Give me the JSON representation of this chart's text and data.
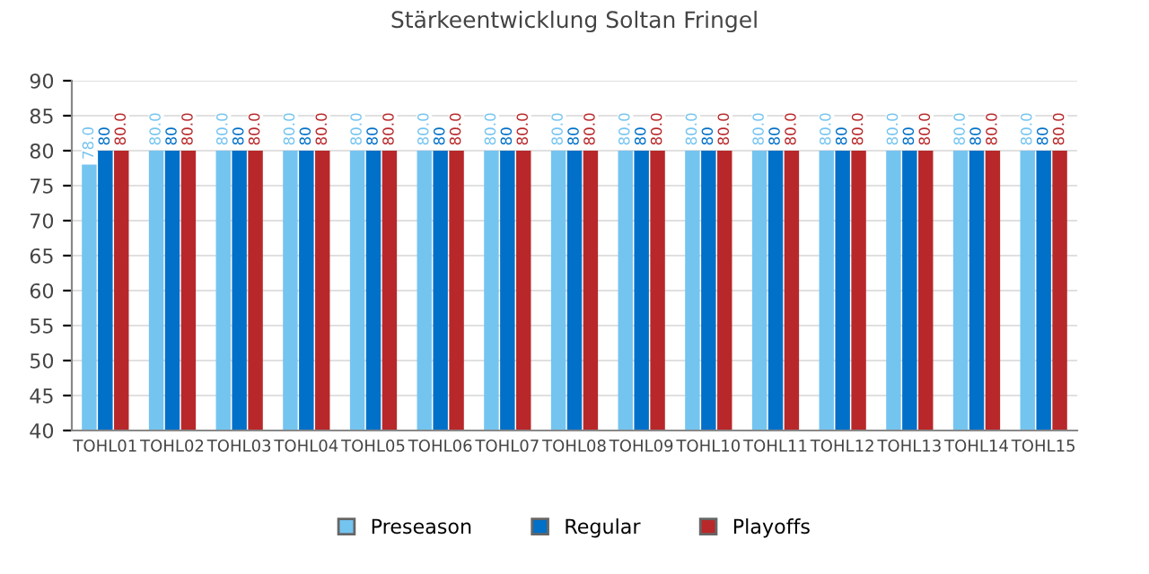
{
  "chart_data": {
    "type": "bar",
    "title": "Stärkeentwicklung Soltan Fringel",
    "categories": [
      "TOHL01",
      "TOHL02",
      "TOHL03",
      "TOHL04",
      "TOHL05",
      "TOHL06",
      "TOHL07",
      "TOHL08",
      "TOHL09",
      "TOHL10",
      "TOHL11",
      "TOHL12",
      "TOHL13",
      "TOHL14",
      "TOHL15"
    ],
    "series": [
      {
        "name": "Preseason",
        "color": "#74c4f0",
        "values": [
          78,
          80,
          80,
          80,
          80,
          80,
          80,
          80,
          80,
          80,
          80,
          80,
          80,
          80,
          80
        ],
        "value_labels": [
          "78.0",
          "80.0",
          "80.0",
          "80.0",
          "80.0",
          "80.0",
          "80.0",
          "80.0",
          "80.0",
          "80.0",
          "80.0",
          "80.0",
          "80.0",
          "80.0",
          "80.0"
        ]
      },
      {
        "name": "Regular",
        "color": "#0070c8",
        "values": [
          80,
          80,
          80,
          80,
          80,
          80,
          80,
          80,
          80,
          80,
          80,
          80,
          80,
          80,
          80
        ],
        "value_labels": [
          "80",
          "80",
          "80",
          "80",
          "80",
          "80",
          "80",
          "80",
          "80",
          "80",
          "80",
          "80",
          "80",
          "80",
          "80"
        ]
      },
      {
        "name": "Playoffs",
        "color": "#b8282a",
        "values": [
          80,
          80,
          80,
          80,
          80,
          80,
          80,
          80,
          80,
          80,
          80,
          80,
          80,
          80,
          80
        ],
        "value_labels": [
          "80.0",
          "80.0",
          "80.0",
          "80.0",
          "80.0",
          "80.0",
          "80.0",
          "80.0",
          "80.0",
          "80.0",
          "80.0",
          "80.0",
          "80.0",
          "80.0",
          "80.0"
        ]
      }
    ],
    "ylim": [
      40,
      90
    ],
    "yticks": [
      40,
      45,
      50,
      55,
      60,
      65,
      70,
      75,
      80,
      85,
      90
    ],
    "grid": "y",
    "legend": "bottom"
  }
}
